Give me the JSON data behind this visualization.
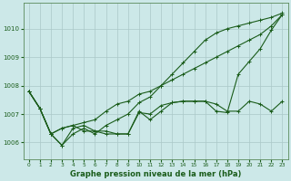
{
  "title": "Graphe pression niveau de la mer (hPa)",
  "bg_color": "#cce8e8",
  "grid_color": "#aac8c8",
  "line_color": "#1a5c1a",
  "xlim": [
    -0.5,
    23.5
  ],
  "ylim": [
    1005.4,
    1010.9
  ],
  "xticks": [
    0,
    1,
    2,
    3,
    4,
    5,
    6,
    7,
    8,
    9,
    10,
    11,
    12,
    13,
    14,
    15,
    16,
    17,
    18,
    19,
    20,
    21,
    22,
    23
  ],
  "yticks": [
    1006,
    1007,
    1008,
    1009,
    1010
  ],
  "series": [
    {
      "x": [
        0,
        1,
        2,
        3,
        4,
        5,
        6,
        7,
        8,
        9,
        10,
        11,
        12,
        13,
        14,
        15,
        16,
        17,
        18,
        19,
        20,
        21,
        22,
        23
      ],
      "y": [
        1007.8,
        1007.2,
        1006.3,
        1006.5,
        1006.6,
        1006.4,
        1006.4,
        1006.3,
        1006.3,
        1006.3,
        1007.1,
        1006.8,
        1007.1,
        1007.4,
        1007.45,
        1007.45,
        1007.45,
        1007.35,
        1007.1,
        1007.1,
        1007.45,
        1007.35,
        1007.1,
        1007.45
      ]
    },
    {
      "x": [
        0,
        1,
        2,
        3,
        4,
        5,
        6,
        7,
        8,
        9,
        10,
        11,
        12,
        13,
        14,
        15,
        16,
        17,
        18,
        19,
        20,
        21,
        22,
        23
      ],
      "y": [
        1007.8,
        1007.2,
        1006.3,
        1006.5,
        1006.6,
        1006.7,
        1006.8,
        1007.1,
        1007.35,
        1007.45,
        1007.7,
        1007.8,
        1008.0,
        1008.2,
        1008.4,
        1008.6,
        1008.8,
        1009.0,
        1009.2,
        1009.4,
        1009.6,
        1009.8,
        1010.1,
        1010.5
      ]
    },
    {
      "x": [
        0,
        1,
        2,
        3,
        4,
        5,
        6,
        7,
        8,
        9,
        10,
        11,
        12,
        13,
        14,
        15,
        16,
        17,
        18,
        19,
        20,
        21,
        22,
        23
      ],
      "y": [
        1007.8,
        1007.2,
        1006.3,
        1005.9,
        1006.5,
        1006.6,
        1006.4,
        1006.4,
        1006.3,
        1006.3,
        1007.05,
        1007.0,
        1007.3,
        1007.4,
        1007.45,
        1007.45,
        1007.45,
        1007.1,
        1007.05,
        1008.4,
        1008.85,
        1009.3,
        1009.95,
        1010.5
      ]
    },
    {
      "x": [
        0,
        1,
        2,
        3,
        4,
        5,
        6,
        7,
        8,
        9,
        10,
        11,
        12,
        13,
        14,
        15,
        16,
        17,
        18,
        19,
        20,
        21,
        22,
        23
      ],
      "y": [
        1007.8,
        1007.2,
        1006.3,
        1005.9,
        1006.3,
        1006.5,
        1006.3,
        1006.6,
        1006.8,
        1007.0,
        1007.4,
        1007.6,
        1008.0,
        1008.4,
        1008.8,
        1009.2,
        1009.6,
        1009.85,
        1010.0,
        1010.1,
        1010.2,
        1010.3,
        1010.4,
        1010.55
      ]
    }
  ]
}
